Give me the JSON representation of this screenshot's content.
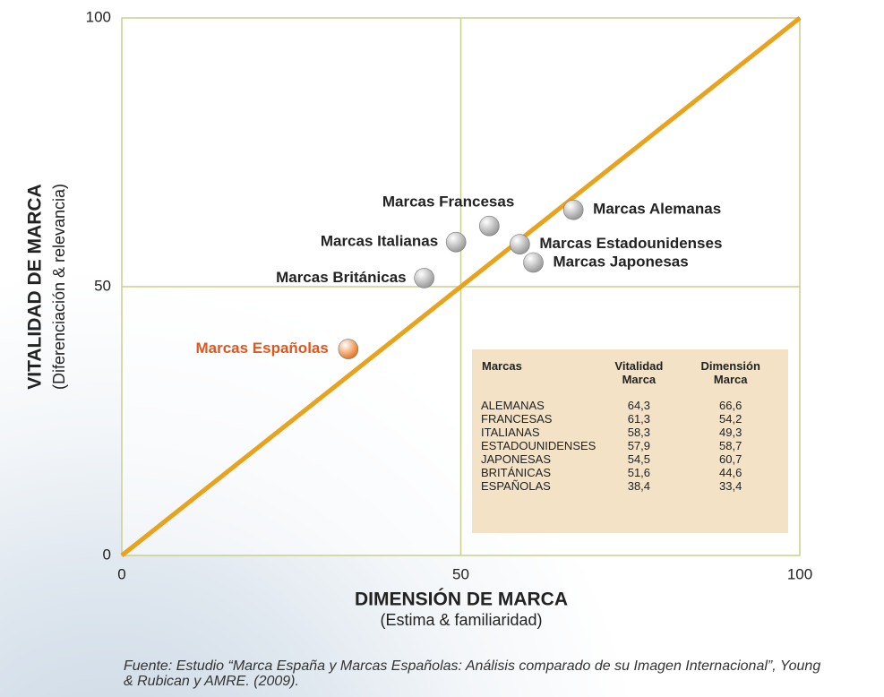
{
  "chart_data": {
    "type": "scatter",
    "xlabel": "DIMENSIÓN DE MARCA",
    "xlabel_sub": "(Estima & familiaridad)",
    "ylabel": "VITALIDAD DE MARCA",
    "ylabel_sub": "(Diferenciación & relevancia)",
    "xlim": [
      0,
      100
    ],
    "ylim": [
      0,
      100
    ],
    "xticks": [
      0,
      50,
      100
    ],
    "yticks": [
      0,
      50,
      100
    ],
    "grid": true,
    "reference_line": {
      "x": [
        0,
        100
      ],
      "y": [
        0,
        100
      ],
      "color": "#e8a21c"
    },
    "series": [
      {
        "name": "Marcas Alemanas",
        "color": "#9a9a9a",
        "label_color": "#222222",
        "x": [
          66.6
        ],
        "values": [
          64.3
        ]
      },
      {
        "name": "Marcas Francesas",
        "color": "#9a9a9a",
        "label_color": "#222222",
        "x": [
          54.2
        ],
        "values": [
          61.3
        ]
      },
      {
        "name": "Marcas Italianas",
        "color": "#9a9a9a",
        "label_color": "#222222",
        "x": [
          49.3
        ],
        "values": [
          58.3
        ]
      },
      {
        "name": "Marcas Estadounidenses",
        "color": "#9a9a9a",
        "label_color": "#222222",
        "x": [
          58.7
        ],
        "values": [
          57.9
        ]
      },
      {
        "name": "Marcas Japonesas",
        "color": "#9a9a9a",
        "label_color": "#222222",
        "x": [
          60.7
        ],
        "values": [
          54.5
        ]
      },
      {
        "name": "Marcas Británicas",
        "color": "#9a9a9a",
        "label_color": "#222222",
        "x": [
          44.6
        ],
        "values": [
          51.6
        ]
      },
      {
        "name": "Marcas Españolas",
        "color": "#e8761e",
        "label_color": "#e0561c",
        "x": [
          33.4
        ],
        "values": [
          38.4
        ]
      }
    ]
  },
  "table": {
    "columns": [
      "Marcas",
      "Vitalidad Marca",
      "Dimensión Marca"
    ],
    "rows": [
      [
        "ALEMANAS",
        "64,3",
        "66,6"
      ],
      [
        "FRANCESAS",
        "61,3",
        "54,2"
      ],
      [
        "ITALIANAS",
        "58,3",
        "49,3"
      ],
      [
        "ESTADOUNIDENSES",
        "57,9",
        "58,7"
      ],
      [
        "JAPONESAS",
        "54,5",
        "60,7"
      ],
      [
        "BRITÁNICAS",
        "51,6",
        "44,6"
      ],
      [
        "ESPAÑOLAS",
        "38,4",
        "33,4"
      ]
    ]
  },
  "source": "Fuente: Estudio “Marca España y Marcas Españolas: Análisis comparado de su Imagen Internacional”, Young & Rubican y AMRE. (2009)."
}
